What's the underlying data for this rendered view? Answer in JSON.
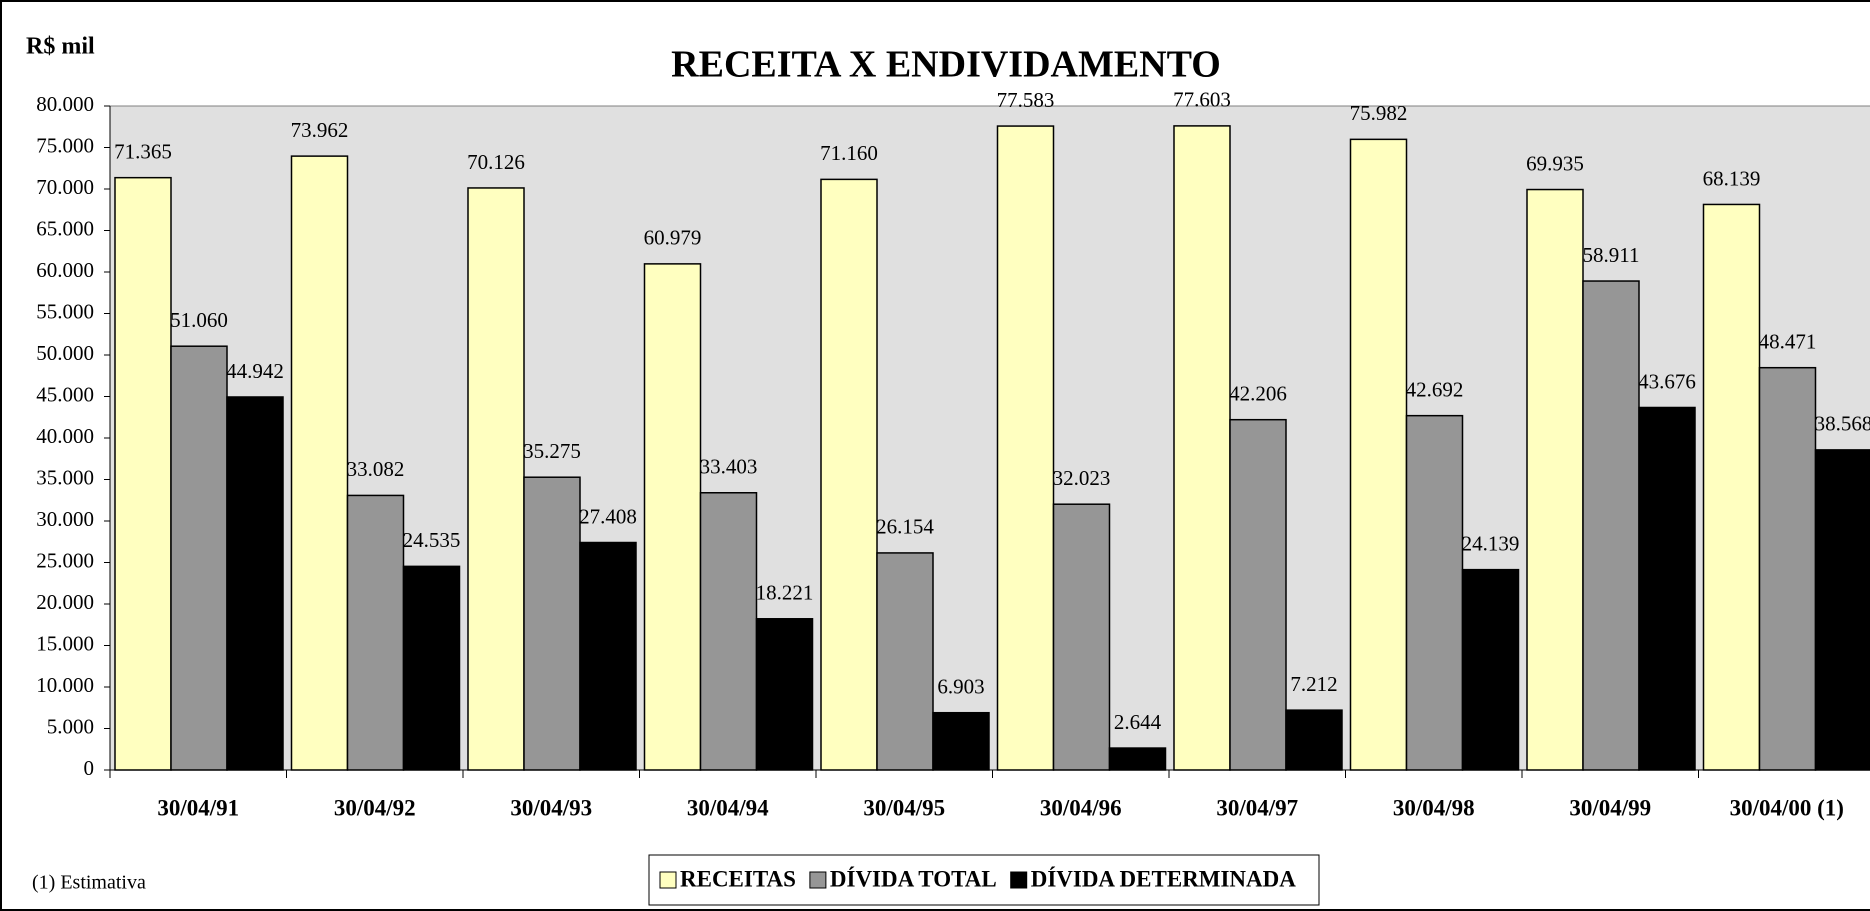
{
  "chart_data": {
    "type": "bar",
    "title": "RECEITA  X  ENDIVIDAMENTO",
    "ylabel": "R$ mil",
    "annotation": "(1)  Estimativa",
    "categories": [
      "30/04/91",
      "30/04/92",
      "30/04/93",
      "30/04/94",
      "30/04/95",
      "30/04/96",
      "30/04/97",
      "30/04/98",
      "30/04/99",
      "30/04/00 (1)"
    ],
    "series": [
      {
        "name": "RECEITAS",
        "color": "#ffffc0",
        "values": [
          71365,
          73962,
          70126,
          60979,
          71160,
          77583,
          77603,
          75982,
          69935,
          68139
        ],
        "value_labels": [
          "71.365",
          "73.962",
          "70.126",
          "60.979",
          "71.160",
          "77.583",
          "77.603",
          "75.982",
          "69.935",
          "68.139"
        ]
      },
      {
        "name": "DÍVIDA TOTAL",
        "color": "#969696",
        "values": [
          51060,
          33082,
          35275,
          33403,
          26154,
          32023,
          42206,
          42692,
          58911,
          48471
        ],
        "value_labels": [
          "51.060",
          "33.082",
          "35.275",
          "33.403",
          "26.154",
          "32.023",
          "42.206",
          "42.692",
          "58.911",
          "48.471"
        ]
      },
      {
        "name": "DÍVIDA DETERMINADA",
        "color": "#000000",
        "values": [
          44942,
          24535,
          27408,
          18221,
          6903,
          2644,
          7212,
          24139,
          43676,
          38568
        ],
        "value_labels": [
          "44.942",
          "24.535",
          "27.408",
          "18.221",
          "6.903",
          "2.644",
          "7.212",
          "24.139",
          "43.676",
          "38.568"
        ]
      }
    ],
    "ylim": [
      0,
      80000
    ],
    "yticks": [
      0,
      {
        "value": 5000,
        "label": "5.000"
      },
      {
        "value": 10000,
        "label": "10.000"
      },
      {
        "value": 15000,
        "label": "15.000"
      },
      {
        "value": 20000,
        "label": "20.000"
      },
      {
        "value": 25000,
        "label": "25.000"
      },
      {
        "value": 30000,
        "label": "30.000"
      },
      {
        "value": 35000,
        "label": "35.000"
      },
      {
        "value": 40000,
        "label": "40.000"
      },
      {
        "value": 45000,
        "label": "45.000"
      },
      {
        "value": 50000,
        "label": "50.000"
      },
      {
        "value": 55000,
        "label": "55.000"
      },
      {
        "value": 60000,
        "label": "60.000"
      },
      {
        "value": 65000,
        "label": "65.000"
      },
      {
        "value": 70000,
        "label": "70.000"
      },
      {
        "value": 75000,
        "label": "75.000"
      },
      {
        "value": 80000,
        "label": "80.000"
      }
    ],
    "legend": "bottom"
  }
}
